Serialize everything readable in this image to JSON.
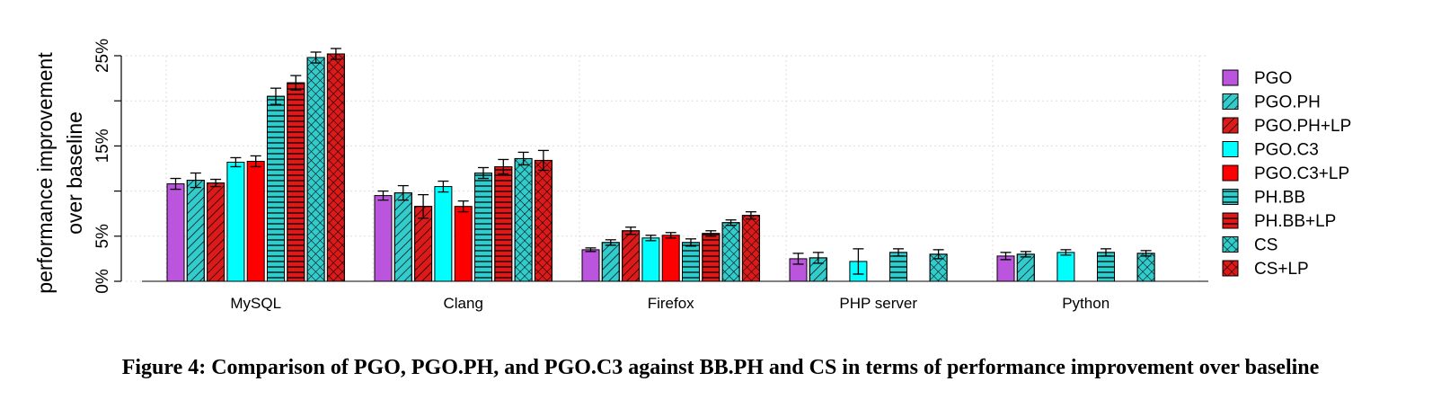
{
  "caption": "Figure 4: Comparison of PGO, PGO.PH, and PGO.C3 against BB.PH and CS in terms of performance improvement over baseline",
  "chart_data": {
    "type": "bar",
    "ylabel_lines": [
      "performance improvement",
      "over baseline"
    ],
    "xlabel": "",
    "ylim": [
      0,
      25
    ],
    "yticks": [
      {
        "value": 0,
        "label": "0%"
      },
      {
        "value": 5,
        "label": "5%"
      },
      {
        "value": 15,
        "label": "15%"
      },
      {
        "value": 25,
        "label": "25%"
      }
    ],
    "grid": true,
    "legend_position": "right",
    "categories": [
      "MySQL",
      "Clang",
      "Firefox",
      "PHP server",
      "Python"
    ],
    "series": [
      {
        "name": "PGO",
        "color": "#bb55dd",
        "pattern": "none",
        "values": [
          10.8,
          9.5,
          3.5,
          2.5,
          2.8
        ],
        "errors": [
          0.6,
          0.5,
          0.2,
          0.6,
          0.4
        ]
      },
      {
        "name": "PGO.PH",
        "color": "#33cccc",
        "pattern": "diagonal",
        "values": [
          11.2,
          9.8,
          4.3,
          2.6,
          3.0
        ],
        "errors": [
          0.8,
          0.8,
          0.3,
          0.6,
          0.3
        ]
      },
      {
        "name": "PGO.PH+LP",
        "color": "#dd1a1a",
        "pattern": "diagonal",
        "values": [
          10.9,
          8.3,
          5.6,
          0,
          0
        ],
        "errors": [
          0.4,
          1.3,
          0.4,
          0,
          0
        ]
      },
      {
        "name": "PGO.C3",
        "color": "#00ffff",
        "pattern": "none",
        "values": [
          13.2,
          10.5,
          4.8,
          2.2,
          3.2
        ],
        "errors": [
          0.5,
          0.6,
          0.3,
          1.4,
          0.3
        ]
      },
      {
        "name": "PGO.C3+LP",
        "color": "#ff0000",
        "pattern": "none",
        "values": [
          13.3,
          8.3,
          5.1,
          0,
          0
        ],
        "errors": [
          0.6,
          0.6,
          0.3,
          0,
          0
        ]
      },
      {
        "name": "PH.BB",
        "color": "#33cccc",
        "pattern": "horizontal",
        "values": [
          20.5,
          12.0,
          4.3,
          3.2,
          3.2
        ],
        "errors": [
          0.9,
          0.6,
          0.4,
          0.4,
          0.4
        ]
      },
      {
        "name": "PH.BB+LP",
        "color": "#dd1a1a",
        "pattern": "horizontal",
        "values": [
          22.0,
          12.7,
          5.3,
          0,
          0
        ],
        "errors": [
          0.8,
          0.8,
          0.3,
          0,
          0
        ]
      },
      {
        "name": "CS",
        "color": "#33cccc",
        "pattern": "cross",
        "values": [
          24.8,
          13.6,
          6.5,
          3.0,
          3.1
        ],
        "errors": [
          0.6,
          0.7,
          0.3,
          0.5,
          0.3
        ]
      },
      {
        "name": "CS+LP",
        "color": "#dd1a1a",
        "pattern": "cross",
        "values": [
          25.2,
          13.4,
          7.3,
          0,
          0
        ],
        "errors": [
          0.6,
          1.1,
          0.4,
          0,
          0
        ]
      }
    ]
  }
}
